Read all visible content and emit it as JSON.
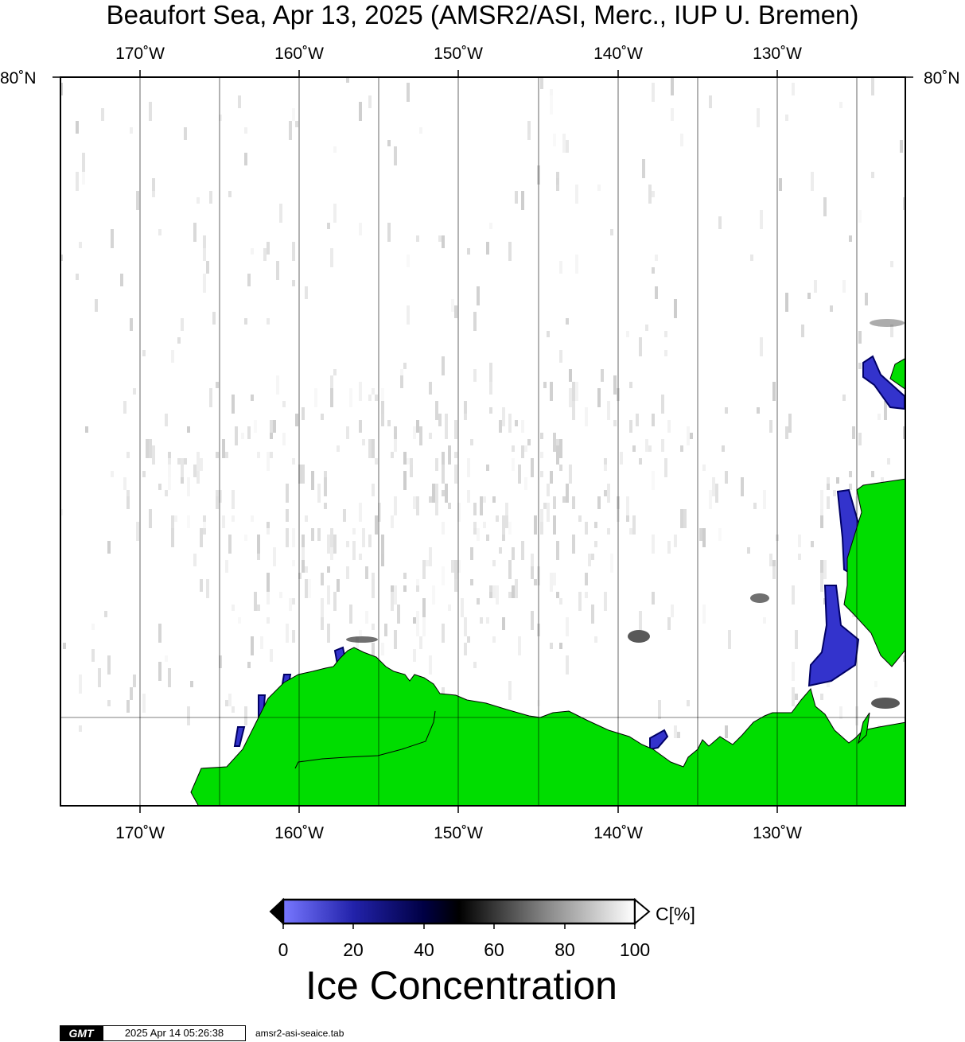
{
  "title": "Beaufort Sea, Apr 13, 2025 (AMSR2/ASI, Merc., IUP U. Bremen)",
  "lon_labels": [
    "170˚W",
    "160˚W",
    "150˚W",
    "140˚W",
    "130˚W"
  ],
  "lat_label": "80˚N",
  "colorbar": {
    "unit": "C[%]",
    "ticks": [
      "0",
      "20",
      "40",
      "60",
      "80",
      "100"
    ],
    "title": "Ice Concentration",
    "colors": [
      "#7777ff",
      "#000066",
      "#000000",
      "#777777",
      "#ffffff"
    ]
  },
  "colors": {
    "land": "#00dd00",
    "ice_low": "#3333cc",
    "frame": "#000000"
  },
  "footer": {
    "logo": "GMT",
    "timestamp": "2025 Apr 14 05:26:38",
    "filename": "amsr2-asi-seaice.tab"
  }
}
